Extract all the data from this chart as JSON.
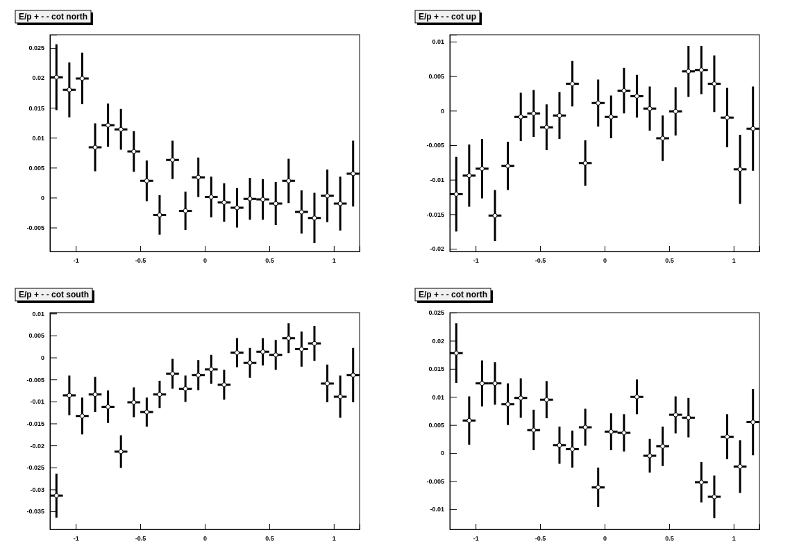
{
  "chart_data": [
    {
      "type": "scatter",
      "title": "E/p + - - cot north",
      "marker": "circle",
      "grid": false,
      "x": [
        -1.15,
        -1.05,
        -0.95,
        -0.85,
        -0.75,
        -0.65,
        -0.55,
        -0.45,
        -0.35,
        -0.25,
        -0.15,
        -0.05,
        0.05,
        0.15,
        0.25,
        0.35,
        0.45,
        0.55,
        0.65,
        0.75,
        0.85,
        0.95,
        1.05,
        1.15
      ],
      "xlim": [
        -1.2,
        1.2
      ],
      "xticks": [
        -1,
        -0.5,
        0,
        0.5,
        1
      ],
      "legend": false,
      "ylim": [
        -0.009,
        0.0272
      ],
      "yticks": [
        -0.005,
        0,
        0.005,
        0.01,
        0.015,
        0.02,
        0.025
      ],
      "series": [
        {
          "color": "#000000",
          "values": [
            0.0201,
            0.018,
            0.0199,
            0.0084,
            0.0121,
            0.0114,
            0.0077,
            0.0028,
            -0.0029,
            0.0063,
            -0.0022,
            0.0034,
            0.0001,
            -0.0008,
            -0.0017,
            -0.0002,
            -0.0003,
            -0.001,
            0.0028,
            -0.0024,
            -0.0034,
            0.0003,
            -0.001,
            0.004
          ],
          "errors": [
            0.0055,
            0.0046,
            0.0043,
            0.004,
            0.0036,
            0.0034,
            0.0034,
            0.0034,
            0.0033,
            0.0032,
            0.0032,
            0.0033,
            0.0034,
            0.0032,
            0.0033,
            0.0035,
            0.0034,
            0.0036,
            0.0037,
            0.0036,
            0.0042,
            0.0044,
            0.0045,
            0.0055
          ],
          "xerrors": [
            0.05,
            0.05,
            0.05,
            0.05,
            0.05,
            0.05,
            0.05,
            0.05,
            0.05,
            0.05,
            0.05,
            0.05,
            0.05,
            0.05,
            0.05,
            0.05,
            0.05,
            0.05,
            0.05,
            0.05,
            0.05,
            0.05,
            0.05,
            0.05
          ]
        }
      ]
    },
    {
      "type": "scatter",
      "title": "E/p + - - cot up",
      "marker": "circle",
      "grid": false,
      "legend": false,
      "x": [
        -1.15,
        -1.05,
        -0.95,
        -0.85,
        -0.75,
        -0.65,
        -0.55,
        -0.45,
        -0.35,
        -0.25,
        -0.15,
        -0.05,
        0.05,
        0.15,
        0.25,
        0.35,
        0.45,
        0.55,
        0.65,
        0.75,
        0.85,
        0.95,
        1.05,
        1.15
      ],
      "xlim": [
        -1.2,
        1.2
      ],
      "xticks": [
        -1,
        -0.5,
        0,
        0.5,
        1
      ],
      "ylim": [
        -0.0204,
        0.011
      ],
      "yticks": [
        -0.02,
        -0.015,
        -0.01,
        -0.005,
        0,
        0.005,
        0.01
      ],
      "series": [
        {
          "color": "#000000",
          "values": [
            -0.0121,
            -0.0094,
            -0.0084,
            -0.0152,
            -0.008,
            -0.0009,
            -0.0004,
            -0.0024,
            -0.0007,
            0.0039,
            -0.0076,
            0.0011,
            -0.0009,
            0.0029,
            0.0021,
            0.0003,
            -0.004,
            -0.0001,
            0.0057,
            0.0059,
            0.0039,
            -0.001,
            -0.0085,
            -0.0026
          ],
          "errors": [
            0.0054,
            0.0045,
            0.0043,
            0.0037,
            0.0035,
            0.0035,
            0.0034,
            0.0033,
            0.0034,
            0.0033,
            0.0033,
            0.0034,
            0.0031,
            0.0033,
            0.0031,
            0.0032,
            0.0033,
            0.0035,
            0.0037,
            0.0035,
            0.0041,
            0.0043,
            0.005,
            0.0061
          ],
          "xerrors": [
            0.05,
            0.05,
            0.05,
            0.05,
            0.05,
            0.05,
            0.05,
            0.05,
            0.05,
            0.05,
            0.05,
            0.05,
            0.05,
            0.05,
            0.05,
            0.05,
            0.05,
            0.05,
            0.05,
            0.05,
            0.05,
            0.05,
            0.05,
            0.05
          ]
        }
      ]
    },
    {
      "type": "scatter",
      "title": "E/p + - - cot south",
      "marker": "circle",
      "grid": false,
      "legend": false,
      "x": [
        -1.15,
        -1.05,
        -0.95,
        -0.85,
        -0.75,
        -0.65,
        -0.55,
        -0.45,
        -0.35,
        -0.25,
        -0.15,
        -0.05,
        0.05,
        0.15,
        0.25,
        0.35,
        0.45,
        0.55,
        0.65,
        0.75,
        0.85,
        0.95,
        1.05,
        1.15
      ],
      "xlim": [
        -1.2,
        1.2
      ],
      "xticks": [
        -1,
        -0.5,
        0,
        0.5,
        1
      ],
      "ylim": [
        -0.0391,
        0.0102
      ],
      "yticks": [
        -0.035,
        -0.03,
        -0.025,
        -0.02,
        -0.015,
        -0.01,
        -0.005,
        0,
        0.005,
        0.01
      ],
      "series": [
        {
          "color": "#000000",
          "values": [
            -0.0314,
            -0.0086,
            -0.0133,
            -0.0084,
            -0.0112,
            -0.0214,
            -0.0102,
            -0.0124,
            -0.0084,
            -0.0037,
            -0.0071,
            -0.004,
            -0.0027,
            -0.0062,
            0.0011,
            -0.0012,
            0.0013,
            0.0006,
            0.0044,
            0.0019,
            0.0032,
            -0.0059,
            -0.0089,
            -0.004
          ],
          "errors": [
            0.005,
            0.0045,
            0.0042,
            0.004,
            0.0037,
            0.0037,
            0.0034,
            0.0033,
            0.0031,
            0.0034,
            0.003,
            0.0034,
            0.0033,
            0.0034,
            0.0033,
            0.0034,
            0.0031,
            0.0034,
            0.0034,
            0.004,
            0.004,
            0.0043,
            0.0048,
            0.0062
          ],
          "xerrors": [
            0.05,
            0.05,
            0.05,
            0.05,
            0.05,
            0.05,
            0.05,
            0.05,
            0.05,
            0.05,
            0.05,
            0.05,
            0.05,
            0.05,
            0.05,
            0.05,
            0.05,
            0.05,
            0.05,
            0.05,
            0.05,
            0.05,
            0.05,
            0.05
          ]
        }
      ]
    },
    {
      "type": "scatter",
      "title": "E/p + - - cot north",
      "marker": "circle",
      "grid": false,
      "x": [
        -1.15,
        -1.05,
        -0.95,
        -0.85,
        -0.75,
        -0.65,
        -0.55,
        -0.45,
        -0.35,
        -0.25,
        -0.15,
        -0.05,
        0.05,
        0.15,
        0.25,
        0.35,
        0.45,
        0.55,
        0.65,
        0.75,
        0.85,
        0.95,
        1.05,
        1.15
      ],
      "xlim": [
        -1.2,
        1.2
      ],
      "xticks": [
        -1,
        -0.5,
        0,
        0.5,
        1
      ],
      "legend": false,
      "ylim": [
        -0.0136,
        0.025
      ],
      "yticks": [
        -0.01,
        -0.005,
        0,
        0.005,
        0.01,
        0.015,
        0.02,
        0.025
      ],
      "series": [
        {
          "color": "#000000",
          "values": [
            0.0178,
            0.0058,
            0.0124,
            0.0124,
            0.0087,
            0.0098,
            0.0041,
            0.0095,
            0.0014,
            0.0007,
            0.0046,
            -0.0061,
            0.0038,
            0.0036,
            0.01,
            -0.0005,
            0.0012,
            0.0068,
            0.0063,
            -0.0052,
            -0.0078,
            0.0029,
            -0.0024,
            0.0055
          ],
          "errors": [
            0.0053,
            0.0043,
            0.0041,
            0.0038,
            0.0037,
            0.0035,
            0.0036,
            0.0033,
            0.0033,
            0.0033,
            0.0033,
            0.0035,
            0.0033,
            0.0033,
            0.0031,
            0.003,
            0.0035,
            0.0033,
            0.0035,
            0.0036,
            0.0038,
            0.004,
            0.0047,
            0.0059
          ],
          "xerrors": [
            0.05,
            0.05,
            0.05,
            0.05,
            0.05,
            0.05,
            0.05,
            0.05,
            0.05,
            0.05,
            0.05,
            0.05,
            0.05,
            0.05,
            0.05,
            0.05,
            0.05,
            0.05,
            0.05,
            0.05,
            0.05,
            0.05,
            0.05,
            0.05
          ]
        }
      ]
    }
  ]
}
